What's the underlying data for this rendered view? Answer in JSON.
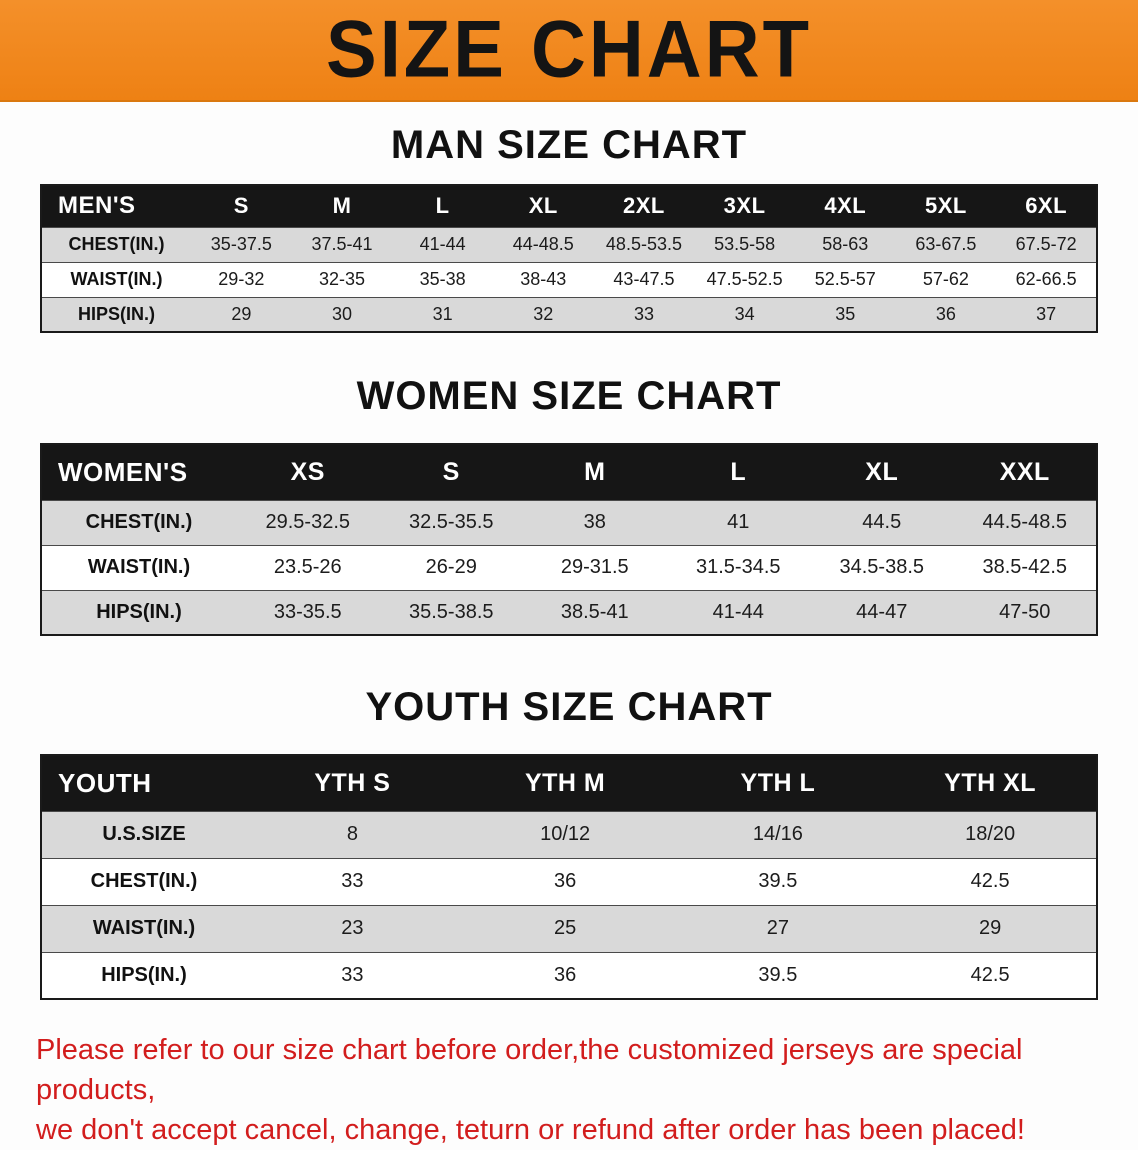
{
  "banner": {
    "title": "SIZE CHART",
    "background_color": "#f08a1f",
    "text_color": "#141414"
  },
  "sections": [
    {
      "heading": "MAN SIZE CHART",
      "table": {
        "header": [
          "MEN'S",
          "S",
          "M",
          "L",
          "XL",
          "2XL",
          "3XL",
          "4XL",
          "5XL",
          "6XL"
        ],
        "rows": [
          {
            "label": "CHEST(IN.)",
            "values": [
              "35-37.5",
              "37.5-41",
              "41-44",
              "44-48.5",
              "48.5-53.5",
              "53.5-58",
              "58-63",
              "63-67.5",
              "67.5-72"
            ]
          },
          {
            "label": "WAIST(IN.)",
            "values": [
              "29-32",
              "32-35",
              "35-38",
              "38-43",
              "43-47.5",
              "47.5-52.5",
              "52.5-57",
              "57-62",
              "62-66.5"
            ]
          },
          {
            "label": "HIPS(IN.)",
            "values": [
              "29",
              "30",
              "31",
              "32",
              "33",
              "34",
              "35",
              "36",
              "37"
            ]
          }
        ]
      }
    },
    {
      "heading": "WOMEN SIZE CHART",
      "table": {
        "header": [
          "WOMEN'S",
          "XS",
          "S",
          "M",
          "L",
          "XL",
          "XXL"
        ],
        "rows": [
          {
            "label": "CHEST(IN.)",
            "values": [
              "29.5-32.5",
              "32.5-35.5",
              "38",
              "41",
              "44.5",
              "44.5-48.5"
            ]
          },
          {
            "label": "WAIST(IN.)",
            "values": [
              "23.5-26",
              "26-29",
              "29-31.5",
              "31.5-34.5",
              "34.5-38.5",
              "38.5-42.5"
            ]
          },
          {
            "label": "HIPS(IN.)",
            "values": [
              "33-35.5",
              "35.5-38.5",
              "38.5-41",
              "41-44",
              "44-47",
              "47-50"
            ]
          }
        ]
      }
    },
    {
      "heading": "YOUTH SIZE CHART",
      "table": {
        "header": [
          "YOUTH",
          "YTH S",
          "YTH M",
          "YTH L",
          "YTH XL"
        ],
        "rows": [
          {
            "label": "U.S.SIZE",
            "values": [
              "8",
              "10/12",
              "14/16",
              "18/20"
            ]
          },
          {
            "label": "CHEST(IN.)",
            "values": [
              "33",
              "36",
              "39.5",
              "42.5"
            ]
          },
          {
            "label": "WAIST(IN.)",
            "values": [
              "23",
              "25",
              "27",
              "29"
            ]
          },
          {
            "label": "HIPS(IN.)",
            "values": [
              "33",
              "36",
              "39.5",
              "42.5"
            ]
          }
        ]
      }
    }
  ],
  "disclaimer": {
    "line1": "Please refer to our size chart before order,the customized jerseys are special products,",
    "line2": "we don't accept cancel, change, teturn or refund after order has been placed!",
    "text_color": "#d21d1d"
  },
  "colors": {
    "banner_orange": "#f08a1f",
    "table_header_bg": "#161616",
    "row_stripe_gray": "#d9d9d9"
  }
}
